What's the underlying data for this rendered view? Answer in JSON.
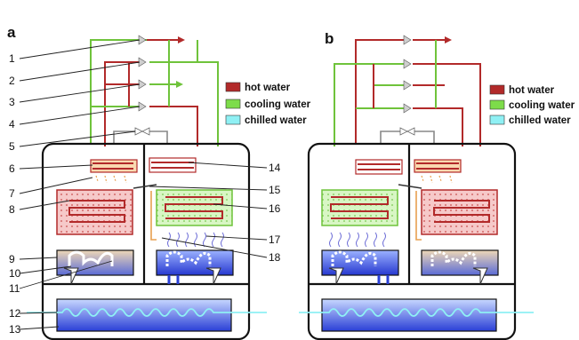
{
  "panels": {
    "a": "a",
    "b": "b"
  },
  "legend": {
    "hot": {
      "label": "hot water",
      "color": "#b22a2a"
    },
    "cooling": {
      "label": "cooling water",
      "color": "#7ddc4a"
    },
    "chilled": {
      "label": "chilled water",
      "color": "#8ff0f4"
    }
  },
  "labels": {
    "n1": "1",
    "n2": "2",
    "n3": "3",
    "n4": "4",
    "n5": "5",
    "n6": "6",
    "n7": "7",
    "n8": "8",
    "n9": "9",
    "n10": "10",
    "n11": "11",
    "n12": "12",
    "n13": "13",
    "n14": "14",
    "n15": "15",
    "n16": "16",
    "n17": "17",
    "n18": "18"
  }
}
